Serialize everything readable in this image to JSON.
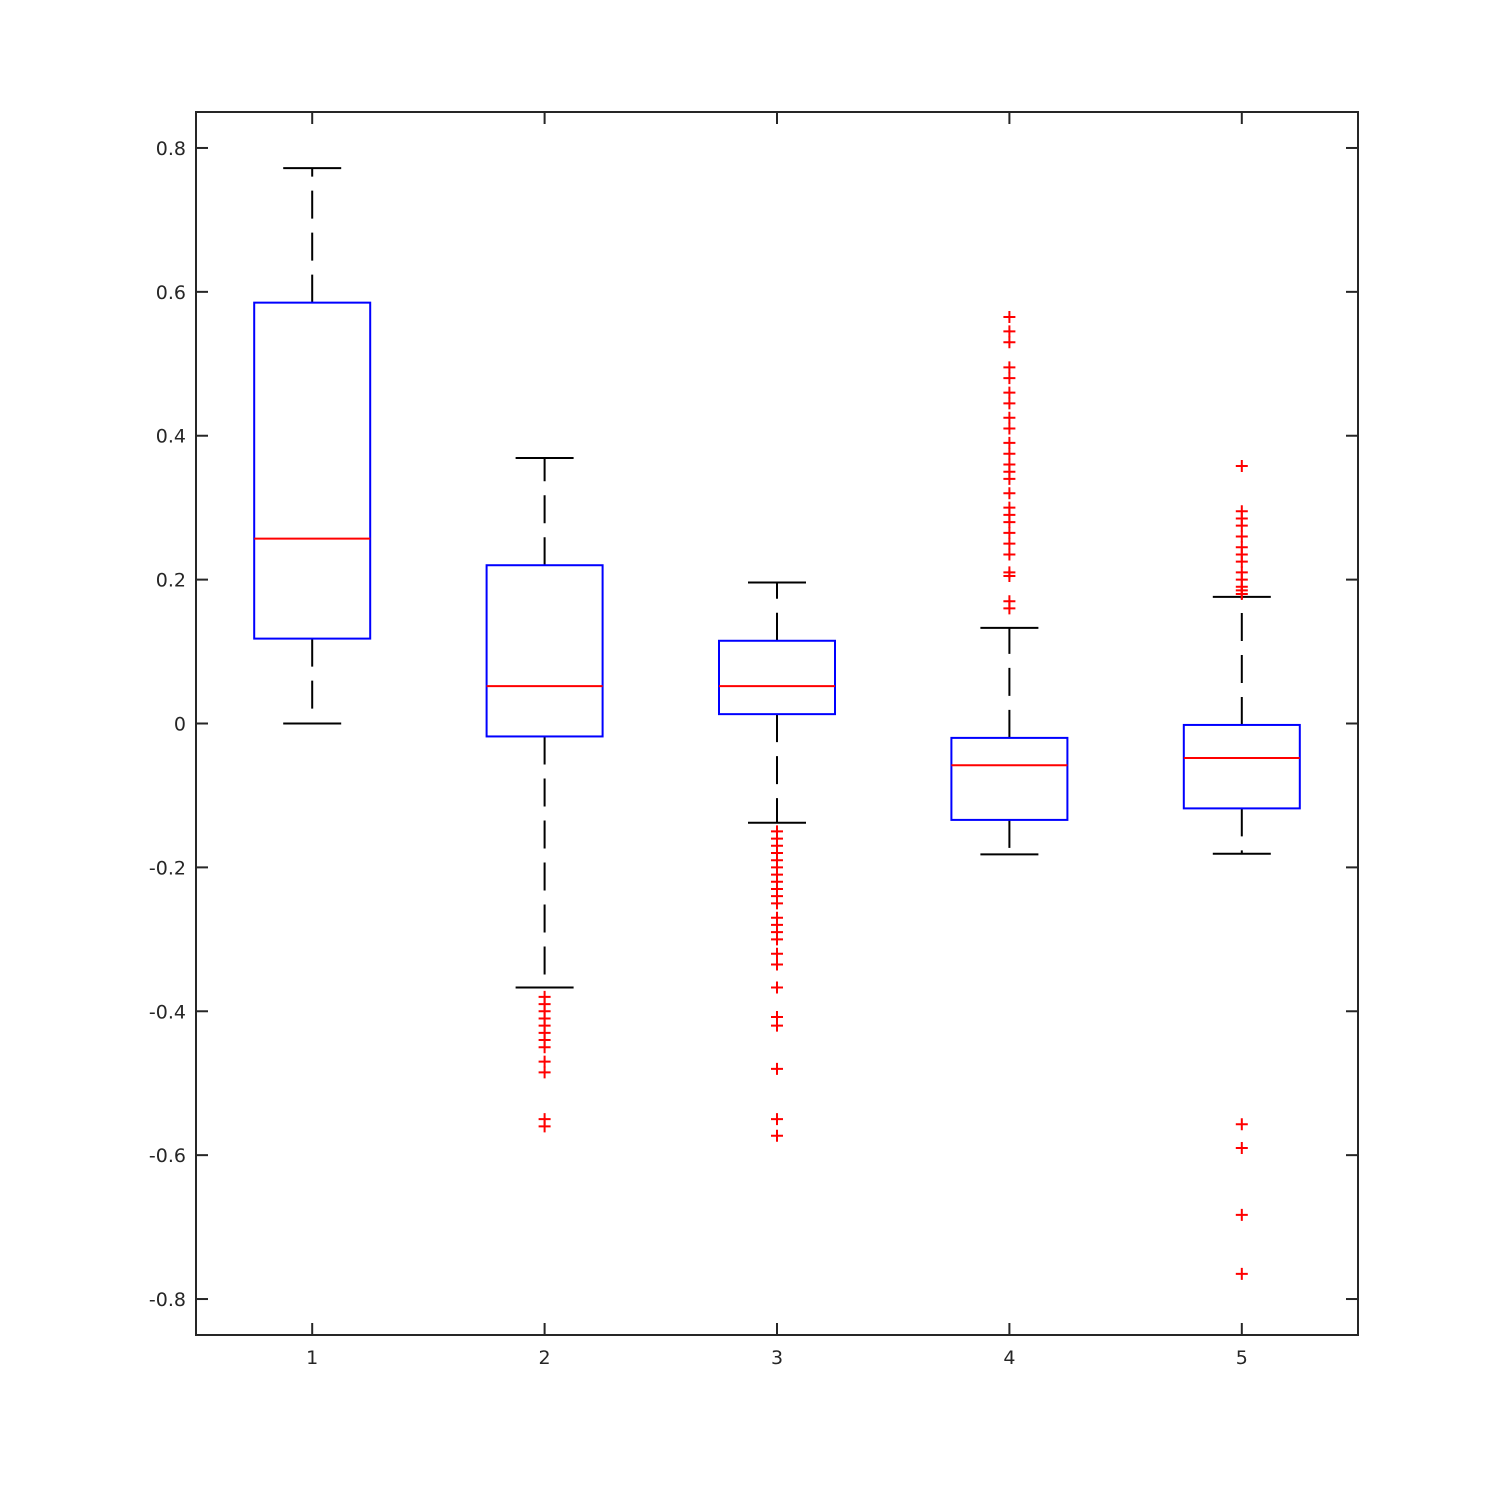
{
  "chart_data": {
    "type": "box",
    "title": "",
    "xlabel": "",
    "ylabel": "",
    "ylim": [
      -0.85,
      0.85
    ],
    "yticks": [
      -0.8,
      -0.6,
      -0.4,
      -0.2,
      0,
      0.2,
      0.4,
      0.6,
      0.8
    ],
    "ytick_labels": [
      "-0.8",
      "-0.6",
      "-0.4",
      "-0.2",
      "0",
      "0.2",
      "0.4",
      "0.6",
      "0.8"
    ],
    "xlim": [
      0.5,
      5.5
    ],
    "categories": [
      "1",
      "2",
      "3",
      "4",
      "5"
    ],
    "grid": false,
    "colors": {
      "box": "#0000ff",
      "median": "#ff0000",
      "whisker": "#000000",
      "outlier": "#ff0000",
      "axes": "#262626"
    },
    "boxes": [
      {
        "label": "1",
        "whisker_low": 0.0,
        "q1": 0.118,
        "median": 0.257,
        "q3": 0.585,
        "whisker_high": 0.772,
        "outliers": []
      },
      {
        "label": "2",
        "whisker_low": -0.367,
        "q1": -0.018,
        "median": 0.052,
        "q3": 0.22,
        "whisker_high": 0.369,
        "outliers": [
          -0.38,
          -0.39,
          -0.4,
          -0.41,
          -0.42,
          -0.43,
          -0.44,
          -0.45,
          -0.47,
          -0.485,
          -0.55,
          -0.56
        ]
      },
      {
        "label": "3",
        "whisker_low": -0.138,
        "q1": 0.013,
        "median": 0.052,
        "q3": 0.115,
        "whisker_high": 0.196,
        "outliers": [
          -0.15,
          -0.16,
          -0.17,
          -0.18,
          -0.19,
          -0.2,
          -0.21,
          -0.22,
          -0.23,
          -0.24,
          -0.25,
          -0.27,
          -0.28,
          -0.29,
          -0.3,
          -0.32,
          -0.335,
          -0.367,
          -0.408,
          -0.42,
          -0.48,
          -0.55,
          -0.573
        ]
      },
      {
        "label": "4",
        "whisker_low": -0.182,
        "q1": -0.134,
        "median": -0.058,
        "q3": -0.02,
        "whisker_high": 0.133,
        "outliers": [
          0.16,
          0.17,
          0.205,
          0.21,
          0.235,
          0.25,
          0.265,
          0.28,
          0.29,
          0.3,
          0.32,
          0.34,
          0.35,
          0.36,
          0.375,
          0.39,
          0.41,
          0.425,
          0.445,
          0.46,
          0.48,
          0.495,
          0.53,
          0.545,
          0.565
        ]
      },
      {
        "label": "5",
        "whisker_low": -0.181,
        "q1": -0.118,
        "median": -0.048,
        "q3": -0.002,
        "whisker_high": 0.176,
        "outliers": [
          0.18,
          0.185,
          0.19,
          0.2,
          0.21,
          0.225,
          0.235,
          0.245,
          0.26,
          0.275,
          0.285,
          0.295,
          0.358,
          -0.557,
          -0.59,
          -0.683,
          -0.765
        ]
      }
    ]
  }
}
